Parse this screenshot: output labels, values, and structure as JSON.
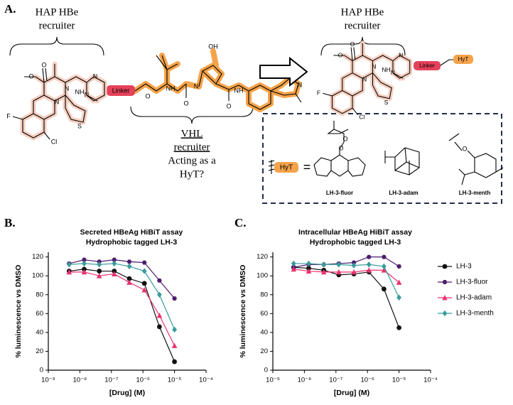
{
  "panel_labels": [
    "A.",
    "B.",
    "C."
  ],
  "scheme": {
    "recruiter_lines": [
      "HAP HBe",
      "recruiter"
    ],
    "linker": "Linker",
    "hyt": "HyT",
    "equals": "=",
    "vhl_lines": [
      "VHL",
      "recruiter",
      "Acting as a",
      "HyT?"
    ],
    "hap_atoms": [
      "O",
      "O",
      "N",
      "N",
      "F",
      "Cl",
      "NH",
      "N",
      "N",
      "S"
    ],
    "vhl_atoms": [
      "NH",
      "O",
      "N",
      "OH",
      "O",
      "NH",
      "O",
      "S",
      "N"
    ],
    "menth_atom": "O",
    "hyt_names": [
      "LH-3-fluor",
      "LH-3-adam",
      "LH-3-menth"
    ]
  },
  "chart_data": [
    {
      "type": "line",
      "title": "Secreted HBeAg HiBiT assay",
      "subtitle": "Hydrophobic tagged LH-3",
      "x_label": "[Drug] (M)",
      "y_label": "% luminescence vs DMSO",
      "log_x": true,
      "x": [
        4.57e-09,
        1.37e-08,
        4.12e-08,
        1.23e-07,
        3.7e-07,
        1.11e-06,
        3.33e-06,
        1e-05
      ],
      "xlim": [
        1e-09,
        0.0001
      ],
      "xticks": [
        {
          "value": 1e-09,
          "label": "10⁻⁹"
        },
        {
          "value": 1e-08,
          "label": "10⁻⁸"
        },
        {
          "value": 1e-07,
          "label": "10⁻⁷"
        },
        {
          "value": 1e-06,
          "label": "10⁻⁶"
        },
        {
          "value": 1e-05,
          "label": "10⁻⁵"
        },
        {
          "value": 0.0001,
          "label": "10⁻⁴"
        }
      ],
      "ylim": [
        0,
        125
      ],
      "yticks": [
        0,
        20,
        40,
        60,
        80,
        100,
        120
      ],
      "series": [
        {
          "name": "LH-3",
          "color": "#111111",
          "marker": "circle",
          "values": [
            105,
            107,
            105,
            105,
            97,
            92,
            46,
            9
          ]
        },
        {
          "name": "LH-3-fluor",
          "color": "#4b1d6e",
          "marker": "hexagon",
          "values": [
            113,
            117,
            115,
            117,
            115,
            114,
            95,
            76
          ]
        },
        {
          "name": "LH-3-adam",
          "color": "#e8336e",
          "marker": "triangle",
          "values": [
            104,
            104,
            100,
            102,
            93,
            85,
            58,
            26
          ]
        },
        {
          "name": "LH-3-menth",
          "color": "#3a9c9c",
          "marker": "diamond",
          "values": [
            112,
            113,
            112,
            113,
            110,
            105,
            80,
            43
          ]
        }
      ]
    },
    {
      "type": "line",
      "title": "Intracellular HBeAg HiBiT assay",
      "subtitle": "Hydrophobic tagged LH-3",
      "x_label": "[Drug] (M)",
      "y_label": "% luminescence vs DMSO",
      "log_x": true,
      "legend": "right",
      "x": [
        4.57e-09,
        1.37e-08,
        4.12e-08,
        1.23e-07,
        3.7e-07,
        1.11e-06,
        3.33e-06,
        1e-05
      ],
      "xlim": [
        1e-09,
        0.0001
      ],
      "xticks": [
        {
          "value": 1e-09,
          "label": "10⁻⁹"
        },
        {
          "value": 1e-08,
          "label": "10⁻⁸"
        },
        {
          "value": 1e-07,
          "label": "10⁻⁷"
        },
        {
          "value": 1e-06,
          "label": "10⁻⁶"
        },
        {
          "value": 1e-05,
          "label": "10⁻⁵"
        },
        {
          "value": 0.0001,
          "label": "10⁻⁴"
        }
      ],
      "ylim": [
        0,
        125
      ],
      "yticks": [
        0,
        20,
        40,
        60,
        80,
        100,
        120
      ],
      "series": [
        {
          "name": "LH-3",
          "color": "#111111",
          "marker": "circle",
          "values": [
            109,
            108,
            106,
            101,
            102,
            104,
            86,
            45
          ]
        },
        {
          "name": "LH-3-fluor",
          "color": "#4b1d6e",
          "marker": "hexagon",
          "values": [
            109,
            112,
            112,
            113,
            114,
            120,
            120,
            110
          ]
        },
        {
          "name": "LH-3-adam",
          "color": "#e8336e",
          "marker": "triangle",
          "values": [
            107,
            105,
            104,
            104,
            104,
            106,
            106,
            93
          ]
        },
        {
          "name": "LH-3-menth",
          "color": "#3a9c9c",
          "marker": "diamond",
          "values": [
            113,
            113,
            112,
            112,
            111,
            112,
            110,
            77
          ]
        }
      ]
    }
  ]
}
